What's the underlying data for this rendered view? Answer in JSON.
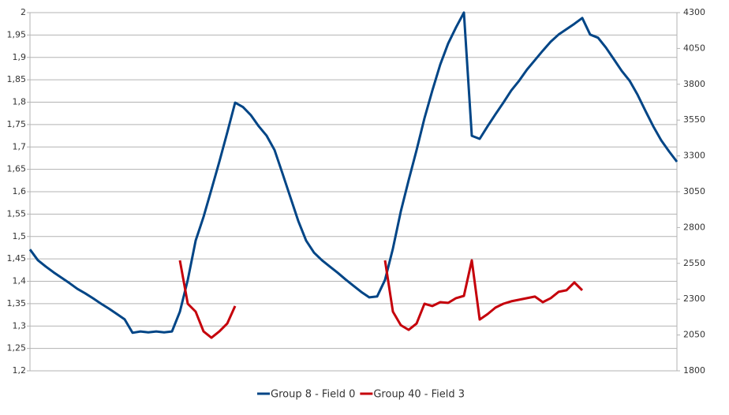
{
  "chart_data": {
    "type": "line",
    "grid": true,
    "legend": "bottom",
    "ylim": [
      1.2,
      2
    ],
    "yticks": [
      {
        "value": 1.2,
        "label": "1,2"
      },
      {
        "value": 1.25,
        "label": "1,25"
      },
      {
        "value": 1.3,
        "label": "1,3"
      },
      {
        "value": 1.35,
        "label": "1,35"
      },
      {
        "value": 1.4,
        "label": "1,4"
      },
      {
        "value": 1.45,
        "label": "1,45"
      },
      {
        "value": 1.5,
        "label": "1,5"
      },
      {
        "value": 1.55,
        "label": "1,55"
      },
      {
        "value": 1.6,
        "label": "1,6"
      },
      {
        "value": 1.65,
        "label": "1,65"
      },
      {
        "value": 1.7,
        "label": "1,7"
      },
      {
        "value": 1.75,
        "label": "1,75"
      },
      {
        "value": 1.8,
        "label": "1,8"
      },
      {
        "value": 1.85,
        "label": "1,85"
      },
      {
        "value": 1.9,
        "label": "1,9"
      },
      {
        "value": 1.95,
        "label": "1,95"
      },
      2
    ],
    "y2lim": [
      1800,
      4300
    ],
    "y2ticks": [
      1800,
      2050,
      2300,
      2550,
      2800,
      3050,
      3300,
      3550,
      3800,
      4050,
      4300
    ],
    "series": [
      {
        "name": "Group 8 - Field 0",
        "color": "#004586",
        "values": [
          1.471,
          1.447,
          1.433,
          1.42,
          1.408,
          1.396,
          1.383,
          1.373,
          1.362,
          1.35,
          1.339,
          1.327,
          1.315,
          1.285,
          1.288,
          1.286,
          1.288,
          1.286,
          1.288,
          1.332,
          1.403,
          1.491,
          1.544,
          1.605,
          1.667,
          1.732,
          1.799,
          1.789,
          1.771,
          1.746,
          1.725,
          1.693,
          1.641,
          1.588,
          1.535,
          1.491,
          1.464,
          1.447,
          1.433,
          1.419,
          1.404,
          1.39,
          1.376,
          1.364,
          1.366,
          1.403,
          1.473,
          1.556,
          1.626,
          1.693,
          1.764,
          1.826,
          1.884,
          1.931,
          1.967,
          2.0,
          1.725,
          1.718,
          1.746,
          1.773,
          1.799,
          1.826,
          1.848,
          1.873,
          1.894,
          1.915,
          1.935,
          1.951,
          1.963,
          1.975,
          1.988,
          1.951,
          1.944,
          1.922,
          1.896,
          1.87,
          1.848,
          1.817,
          1.781,
          1.746,
          1.715,
          1.69,
          1.667
        ]
      },
      {
        "name": "Group 40 - Field 3",
        "color": "#c5000b",
        "axis": "y2",
        "values": [
          null,
          null,
          null,
          null,
          null,
          null,
          null,
          null,
          null,
          null,
          null,
          null,
          null,
          null,
          null,
          null,
          null,
          null,
          null,
          2571,
          2268,
          2213,
          2075,
          2031,
          2075,
          2130,
          2252,
          null,
          null,
          null,
          null,
          null,
          null,
          null,
          null,
          null,
          null,
          null,
          null,
          null,
          null,
          null,
          null,
          null,
          null,
          2571,
          2213,
          2119,
          2086,
          2130,
          2268,
          2252,
          2279,
          2274,
          2307,
          2323,
          2571,
          2158,
          2196,
          2241,
          2268,
          2285,
          2296,
          2307,
          2318,
          2279,
          2307,
          2351,
          2362,
          2417,
          2362,
          null,
          null,
          null,
          null,
          null,
          null,
          null,
          null,
          null,
          null,
          null,
          null
        ]
      }
    ]
  }
}
